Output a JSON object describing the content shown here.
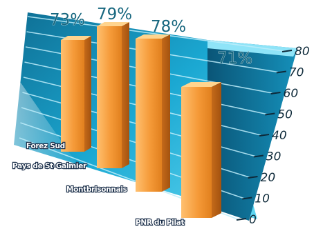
{
  "chart_data": {
    "type": "bar",
    "categories": [
      "Forez Sud",
      "Pays de St-Galmier",
      "Montbrisonnais",
      "PNR du Pilat"
    ],
    "values": [
      73,
      79,
      78,
      71
    ],
    "data_labels": [
      "73%",
      "79%",
      "78%",
      "71%"
    ],
    "ylim": [
      0,
      80
    ],
    "y_ticks": [
      "0",
      "10",
      "20",
      "30",
      "40",
      "50",
      "60",
      "70",
      "80"
    ],
    "grid": true,
    "style": "3d-perspective",
    "colors": {
      "bar_front": "#f5a548",
      "bar_side": "#c9721f",
      "bar_top": "#ffd48e",
      "floor": "#1fb3d8",
      "wall": "#5fd0ec",
      "value_label": "#17677f"
    }
  }
}
